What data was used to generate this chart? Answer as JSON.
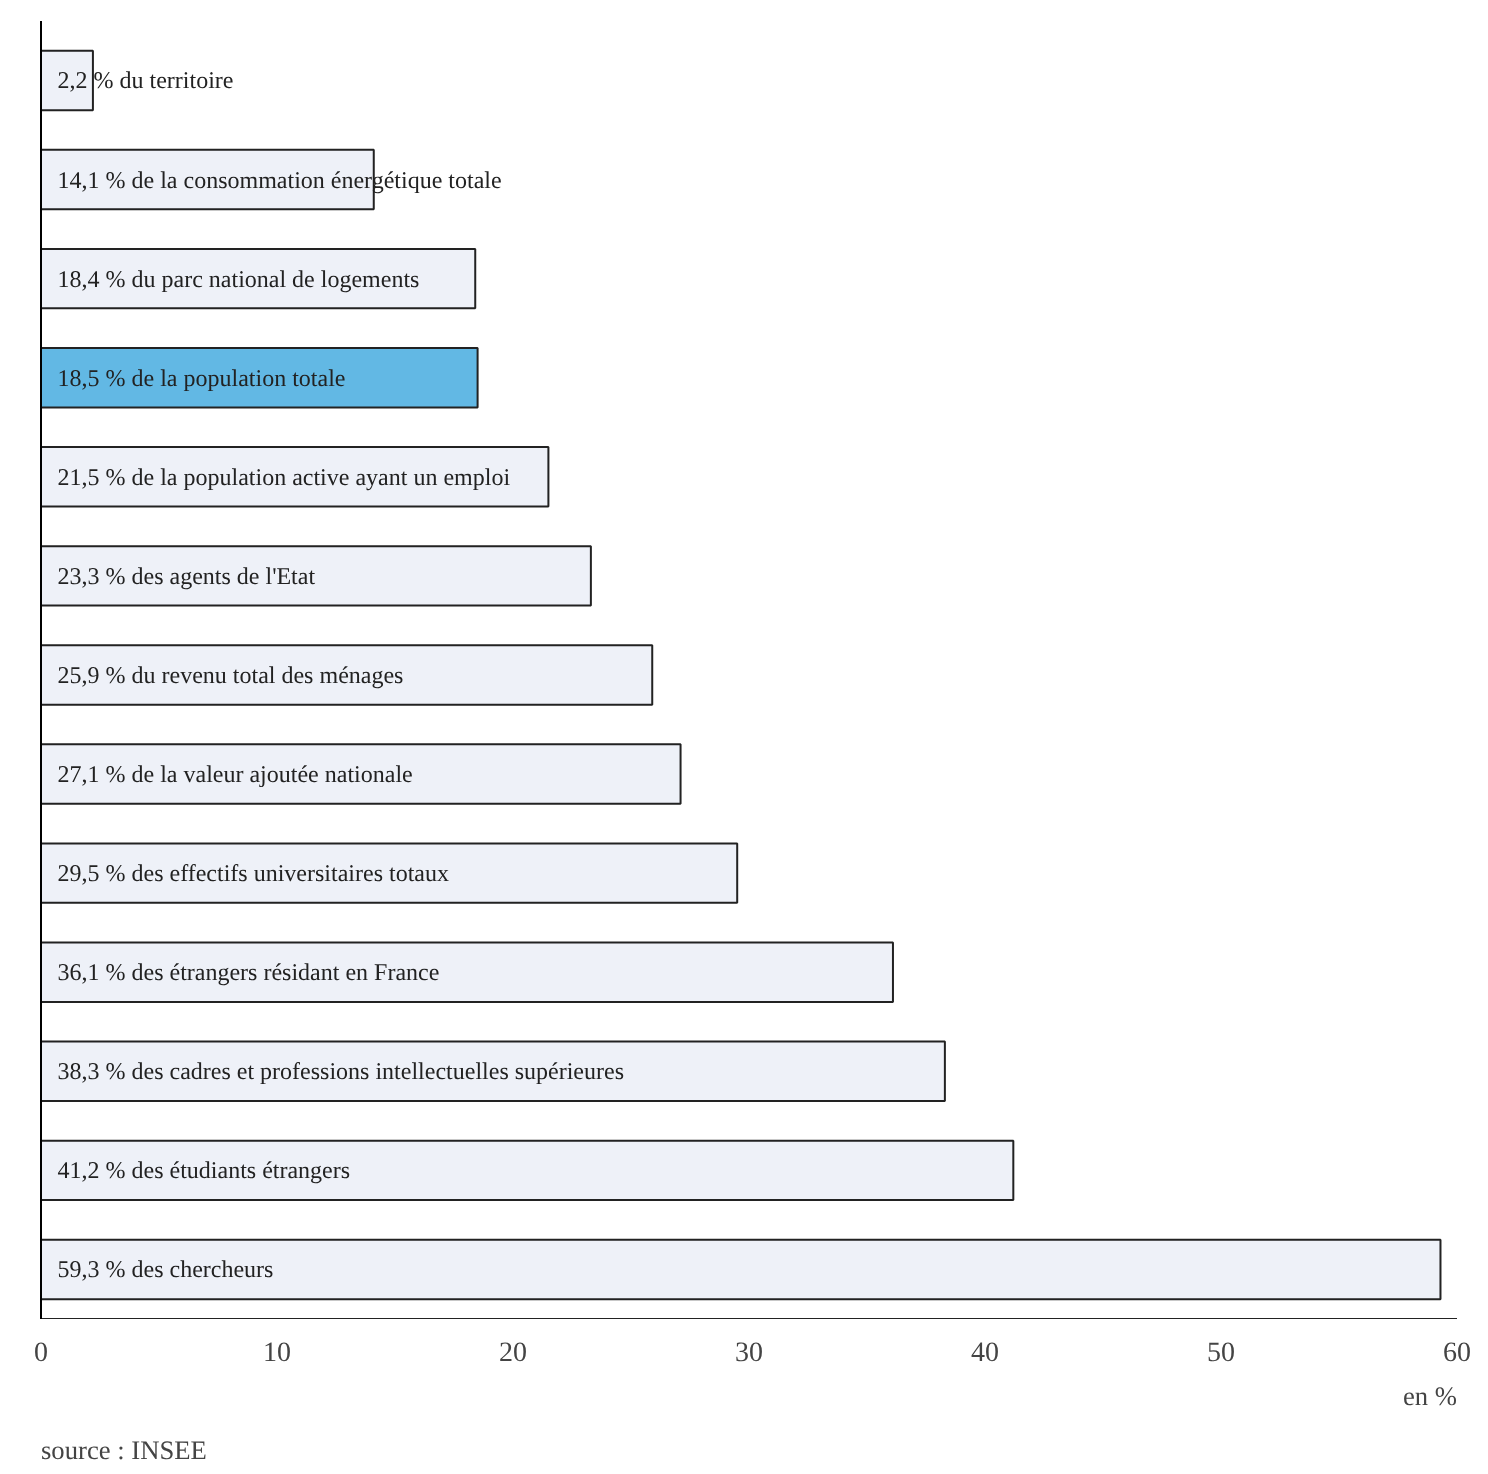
{
  "chart_data": {
    "type": "bar",
    "orientation": "horizontal",
    "categories": [
      "2,2 % du territoire",
      "14,1 % de la consommation énergétique totale",
      "18,4 % du parc national de logements",
      "18,5 % de la population totale",
      "21,5 % de la population active ayant un emploi",
      "23,3 % des agents de l'Etat",
      "25,9 % du revenu total des ménages",
      "27,1 % de la valeur ajoutée nationale",
      "29,5 % des effectifs universitaires totaux",
      "36,1 % des étrangers résidant en France",
      "38,3 % des cadres et professions intellectuelles supérieures",
      "41,2  % des étudiants étrangers",
      "59,3 % des chercheurs"
    ],
    "values": [
      2.2,
      14.1,
      18.4,
      18.5,
      21.5,
      23.3,
      25.9,
      27.1,
      29.5,
      36.1,
      38.3,
      41.2,
      59.3
    ],
    "colors": [
      "#eef1f8",
      "#eef1f8",
      "#eef1f8",
      "#62b8e4",
      "#eef1f8",
      "#eef1f8",
      "#eef1f8",
      "#eef1f8",
      "#eef1f8",
      "#eef1f8",
      "#eef1f8",
      "#eef1f8",
      "#eef1f8"
    ],
    "xlim": [
      0,
      60
    ],
    "xticks": [
      0,
      10,
      20,
      30,
      40,
      50,
      60
    ],
    "xlabel": "en %",
    "annotations": [
      "source : INSEE"
    ],
    "grid": false
  }
}
